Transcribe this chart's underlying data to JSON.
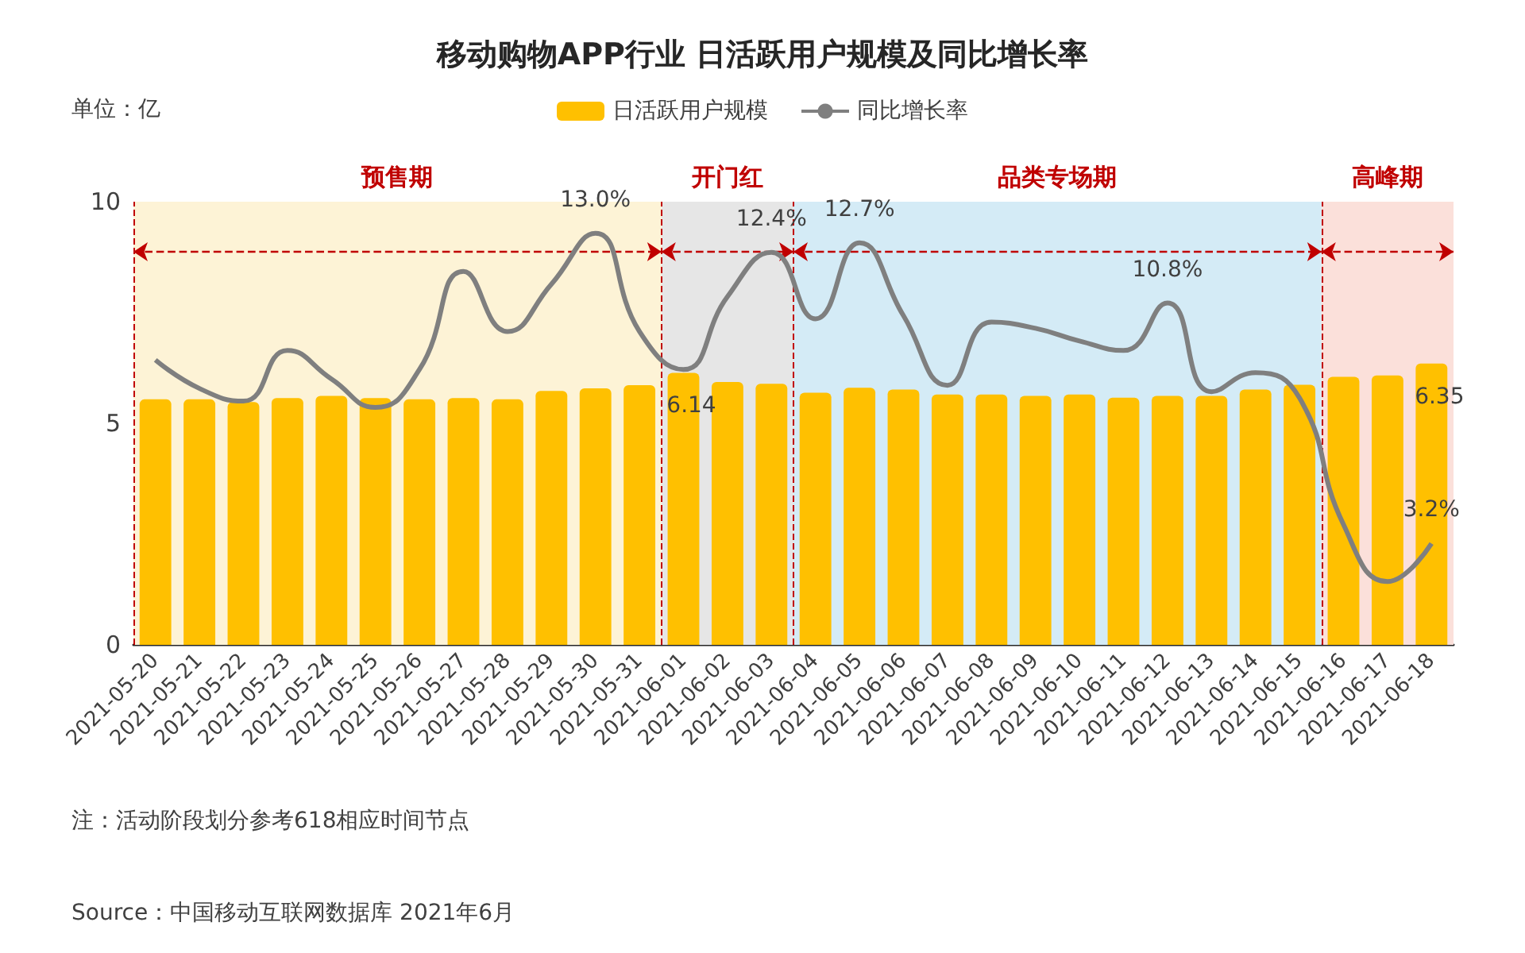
{
  "chart_data": {
    "type": "bar",
    "title": "移动购物APP行业 日活跃用户规模及同比增长率",
    "ylabel": "单位：亿",
    "categories": [
      "2021-05-20",
      "2021-05-21",
      "2021-05-22",
      "2021-05-23",
      "2021-05-24",
      "2021-05-25",
      "2021-05-26",
      "2021-05-27",
      "2021-05-28",
      "2021-05-29",
      "2021-05-30",
      "2021-05-31",
      "2021-06-01",
      "2021-06-02",
      "2021-06-03",
      "2021-06-04",
      "2021-06-05",
      "2021-06-06",
      "2021-06-07",
      "2021-06-08",
      "2021-06-09",
      "2021-06-10",
      "2021-06-11",
      "2021-06-12",
      "2021-06-13",
      "2021-06-14",
      "2021-06-15",
      "2021-06-16",
      "2021-06-17",
      "2021-06-18"
    ],
    "series": [
      {
        "name": "日活跃用户规模",
        "color": "#ffc000",
        "values": [
          5.54,
          5.54,
          5.48,
          5.57,
          5.62,
          5.57,
          5.54,
          5.57,
          5.54,
          5.73,
          5.79,
          5.86,
          6.14,
          5.93,
          5.89,
          5.69,
          5.8,
          5.76,
          5.65,
          5.65,
          5.62,
          5.65,
          5.58,
          5.62,
          5.62,
          5.76,
          5.87,
          6.05,
          6.08,
          6.35
        ],
        "value_labels": [
          null,
          null,
          null,
          null,
          null,
          null,
          null,
          null,
          null,
          null,
          null,
          null,
          "6.14",
          null,
          null,
          null,
          null,
          null,
          null,
          null,
          null,
          null,
          null,
          null,
          null,
          null,
          null,
          null,
          null,
          "6.35"
        ]
      },
      {
        "name": "同比增长率",
        "type": "line",
        "axis": "y2",
        "color": "#7f7f7f",
        "marker": "none",
        "values": [
          9.0,
          8.1,
          7.7,
          9.3,
          8.4,
          7.5,
          8.7,
          11.8,
          9.9,
          11.4,
          13.0,
          9.9,
          8.7,
          11.0,
          12.4,
          10.3,
          12.7,
          10.4,
          8.2,
          10.2,
          10.0,
          9.6,
          9.3,
          10.8,
          8.0,
          8.6,
          7.8,
          3.8,
          2.0,
          3.2
        ],
        "value_labels": [
          null,
          null,
          null,
          null,
          null,
          null,
          null,
          null,
          null,
          null,
          "13.0%",
          null,
          null,
          null,
          "12.4%",
          null,
          "12.7%",
          null,
          null,
          null,
          null,
          null,
          null,
          "10.8%",
          null,
          null,
          null,
          null,
          null,
          "3.2%"
        ]
      }
    ],
    "ylim": [
      0,
      10
    ],
    "yticks": [
      0,
      5,
      10
    ],
    "y2lim": [
      0,
      14
    ],
    "bands": [
      {
        "axis": "x",
        "from": "2021-05-20",
        "to": "2021-05-31",
        "label": "预售期",
        "color": "#fdf3d6"
      },
      {
        "axis": "x",
        "from": "2021-06-01",
        "to": "2021-06-03",
        "label": "开门红",
        "color": "#e6e6e6"
      },
      {
        "axis": "x",
        "from": "2021-06-04",
        "to": "2021-06-15",
        "label": "品类专场期",
        "color": "#d4ebf6"
      },
      {
        "axis": "x",
        "from": "2021-06-16",
        "to": "2021-06-18",
        "label": "高峰期",
        "color": "#fbe0da"
      }
    ],
    "legend": "top",
    "annotations": [
      "注：活动阶段划分参考618相应时间节点",
      "Source：中国移动互联网数据库 2021年6月"
    ]
  }
}
